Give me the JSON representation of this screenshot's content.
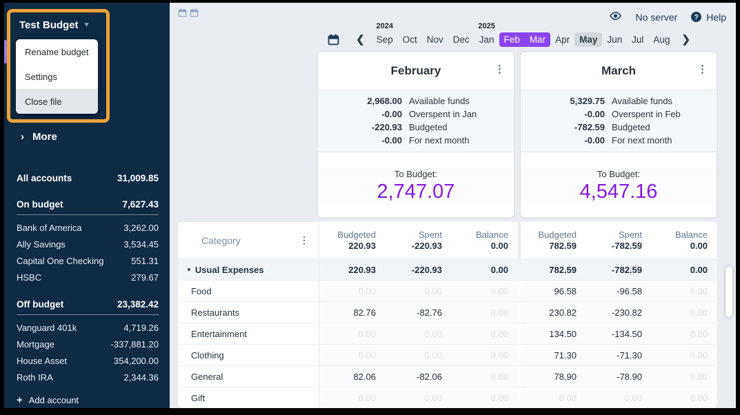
{
  "colors": {
    "sidebar_bg": "#0f2a43",
    "highlight_orange": "#e9a23b",
    "selected_month_purple": "#8b45f0",
    "to_budget_purple": "#8718dd",
    "accent_bar_purple": "#9c7be4"
  },
  "sidebar": {
    "budget_name": "Test Budget",
    "menu_items": [
      {
        "label": "Rename budget",
        "highlighted": false
      },
      {
        "label": "Settings",
        "highlighted": false
      },
      {
        "label": "Close file",
        "highlighted": true
      }
    ],
    "more_label": "More",
    "all_accounts": {
      "name": "All accounts",
      "value": "31,009.85"
    },
    "groups": [
      {
        "name": "On budget",
        "value": "7,627.43",
        "accounts": [
          {
            "name": "Bank of America",
            "value": "3,262.00"
          },
          {
            "name": "Ally Savings",
            "value": "3,534.45"
          },
          {
            "name": "Capital One Checking",
            "value": "551.31"
          },
          {
            "name": "HSBC",
            "value": "279.67"
          }
        ]
      },
      {
        "name": "Off budget",
        "value": "23,382.42",
        "accounts": [
          {
            "name": "Vanguard 401k",
            "value": "4,719.26"
          },
          {
            "name": "Mortgage",
            "value": "-337,881.20"
          },
          {
            "name": "House Asset",
            "value": "354,200.00"
          },
          {
            "name": "Roth IRA",
            "value": "2,344.36"
          }
        ]
      }
    ],
    "add_account_label": "Add account"
  },
  "topbar": {
    "no_server_label": "No server",
    "help_label": "Help",
    "help_glyph": "?"
  },
  "month_nav": {
    "months": [
      {
        "label": "Sep",
        "year": "2024"
      },
      {
        "label": "Oct"
      },
      {
        "label": "Nov"
      },
      {
        "label": "Dec"
      },
      {
        "label": "Jan",
        "year": "2025"
      },
      {
        "label": "Feb",
        "state": "selected"
      },
      {
        "label": "Mar",
        "state": "selected"
      },
      {
        "label": "Apr"
      },
      {
        "label": "May",
        "state": "current"
      },
      {
        "label": "Jun"
      },
      {
        "label": "Jul"
      },
      {
        "label": "Aug"
      }
    ]
  },
  "cards": [
    {
      "title": "February",
      "summary": [
        {
          "amount": "2,968.00",
          "label": "Available funds"
        },
        {
          "amount": "-0.00",
          "label": "Overspent in Jan"
        },
        {
          "amount": "-220.93",
          "label": "Budgeted"
        },
        {
          "amount": "-0.00",
          "label": "For next month"
        }
      ],
      "to_budget_label": "To Budget:",
      "to_budget_amount": "2,747.07"
    },
    {
      "title": "March",
      "summary": [
        {
          "amount": "5,329.75",
          "label": "Available funds"
        },
        {
          "amount": "-0.00",
          "label": "Overspent in Feb"
        },
        {
          "amount": "-782.59",
          "label": "Budgeted"
        },
        {
          "amount": "-0.00",
          "label": "For next month"
        }
      ],
      "to_budget_label": "To Budget:",
      "to_budget_amount": "4,547.16"
    }
  ],
  "table": {
    "category_label": "Category",
    "column_labels": [
      "Budgeted",
      "Spent",
      "Balance"
    ],
    "totals": {
      "feb": [
        "220.93",
        "-220.93",
        "0.00"
      ],
      "mar": [
        "782.59",
        "-782.59",
        "0.00"
      ]
    },
    "rows": [
      {
        "name": "Usual Expenses",
        "group": true,
        "feb": [
          "220.93",
          "-220.93",
          "0.00"
        ],
        "mar": [
          "782.59",
          "-782.59",
          "0.00"
        ]
      },
      {
        "name": "Food",
        "feb": [
          "0.00",
          "0.00",
          "0.00"
        ],
        "mar": [
          "96.58",
          "-96.58",
          "0.00"
        ]
      },
      {
        "name": "Restaurants",
        "feb": [
          "82.76",
          "-82.76",
          "0.00"
        ],
        "mar": [
          "230.82",
          "-230.82",
          "0.00"
        ]
      },
      {
        "name": "Entertainment",
        "feb": [
          "0.00",
          "0.00",
          "0.00"
        ],
        "mar": [
          "134.50",
          "-134.50",
          "0.00"
        ]
      },
      {
        "name": "Clothing",
        "feb": [
          "0.00",
          "0.00",
          "0.00"
        ],
        "mar": [
          "71.30",
          "-71.30",
          "0.00"
        ]
      },
      {
        "name": "General",
        "feb": [
          "82.06",
          "-82.06",
          "0.00"
        ],
        "mar": [
          "78.90",
          "-78.90",
          "0.00"
        ]
      },
      {
        "name": "Gift",
        "feb": [
          "0.00",
          "0.00",
          "0.00"
        ],
        "mar": [
          "0.00",
          "0.00",
          "0.00"
        ]
      }
    ]
  }
}
